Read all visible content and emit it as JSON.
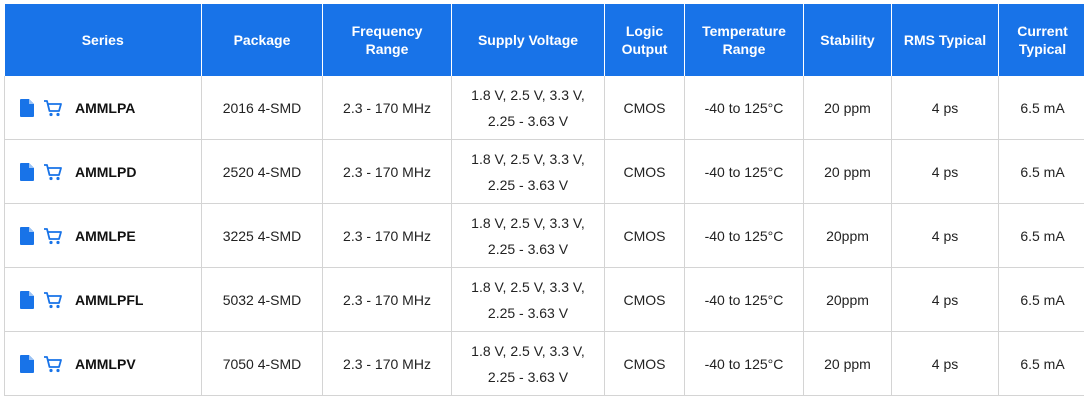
{
  "table": {
    "headers": [
      "Series",
      "Package",
      "Frequency Range",
      "Supply Voltage",
      "Logic Output",
      "Temperature Range",
      "Stability",
      "RMS Typical",
      "Current Typical"
    ],
    "rows": [
      {
        "series": "AMMLPA",
        "package": "2016 4-SMD",
        "frequency": "2.3 - 170 MHz",
        "voltage_line1": "1.8 V, 2.5 V, 3.3 V,",
        "voltage_line2": "2.25 - 3.63 V",
        "logic": "CMOS",
        "temperature": "-40 to 125°C",
        "stability": "20 ppm",
        "rms": "4 ps",
        "current": "6.5 mA"
      },
      {
        "series": "AMMLPD",
        "package": "2520 4-SMD",
        "frequency": "2.3 - 170 MHz",
        "voltage_line1": "1.8 V, 2.5 V, 3.3 V,",
        "voltage_line2": "2.25 - 3.63 V",
        "logic": "CMOS",
        "temperature": "-40 to 125°C",
        "stability": "20 ppm",
        "rms": "4 ps",
        "current": "6.5 mA"
      },
      {
        "series": "AMMLPE",
        "package": "3225 4-SMD",
        "frequency": "2.3 - 170 MHz",
        "voltage_line1": "1.8 V, 2.5 V, 3.3 V,",
        "voltage_line2": "2.25 - 3.63 V",
        "logic": "CMOS",
        "temperature": "-40 to 125°C",
        "stability": "20ppm",
        "rms": "4 ps",
        "current": "6.5 mA"
      },
      {
        "series": "AMMLPFL",
        "package": "5032 4-SMD",
        "frequency": "2.3 - 170 MHz",
        "voltage_line1": "1.8 V, 2.5 V, 3.3 V,",
        "voltage_line2": "2.25 - 3.63 V",
        "logic": "CMOS",
        "temperature": "-40 to 125°C",
        "stability": "20ppm",
        "rms": "4 ps",
        "current": "6.5 mA"
      },
      {
        "series": "AMMLPV",
        "package": "7050 4-SMD",
        "frequency": "2.3 - 170 MHz",
        "voltage_line1": "1.8 V, 2.5 V, 3.3 V,",
        "voltage_line2": "2.25 - 3.63 V",
        "logic": "CMOS",
        "temperature": "-40 to 125°C",
        "stability": "20 ppm",
        "rms": "4 ps",
        "current": "6.5 mA"
      }
    ]
  },
  "icons": {
    "datasheet": "document-icon",
    "cart": "shopping-cart-icon"
  },
  "colors": {
    "header_bg": "#1873e8",
    "header_text": "#ffffff",
    "icon": "#1873e8",
    "grid": "#d4d4d4"
  }
}
